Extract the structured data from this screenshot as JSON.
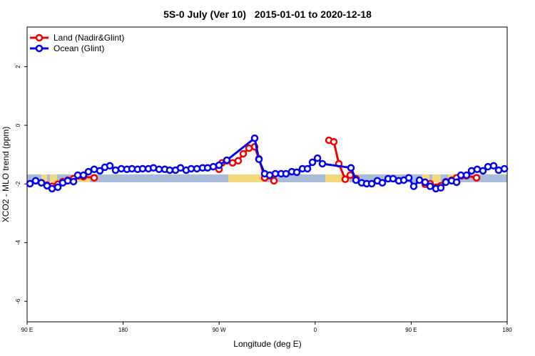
{
  "chart_data": {
    "type": "line",
    "title": "5S-0 July (Ver 10)   2015-01-01 to 2020-12-18",
    "x_label": "Longitude (deg E)",
    "y_label": "XCO2 - MLO trend (ppm)",
    "xlim": [
      90,
      540
    ],
    "xticks": [
      {
        "value": 90,
        "label": "90 E"
      },
      {
        "value": 180,
        "label": "180"
      },
      {
        "value": 270,
        "label": "90 W"
      },
      {
        "value": 360,
        "label": "0"
      },
      {
        "value": 450,
        "label": "90 E"
      },
      {
        "value": 540,
        "label": "180"
      }
    ],
    "ylim": [
      -6.7,
      3.35
    ],
    "yticks": [
      2,
      0,
      -2,
      -4,
      -6
    ],
    "legend": "top-left",
    "series": [
      {
        "name": "Land (Nadir&Glint)",
        "color": "#ee0000",
        "x": [
          103.4,
          108.7,
          113.4,
          118.8,
          123.4,
          128.1,
          133.5,
          138.1,
          142.8,
          152.9,
          220,
          269.9,
          272.6,
          277.2,
          282.6,
          287.9,
          292.6,
          298.0,
          303.3,
          307.3,
          312.7,
          317.4,
          321.4,
          340,
          372.9,
          377.5,
          382.2,
          388.2,
          392.9,
          398.3,
          430,
          463.1,
          467.8,
          473.2,
          477.8,
          482.5,
          487.9,
          492.6,
          497.2,
          501.9,
          511.3
        ],
        "values": [
          -1.96,
          -2.04,
          -2.08,
          -2.01,
          -1.92,
          -1.87,
          -1.82,
          -1.72,
          -1.75,
          -1.79,
          null,
          -1.5,
          -1.28,
          -1.21,
          -1.28,
          -1.21,
          -0.97,
          -0.78,
          -0.73,
          -1.14,
          -1.79,
          -1.72,
          -1.89,
          null,
          -0.51,
          -0.56,
          -1.31,
          -1.84,
          -1.7,
          -1.82,
          null,
          -2.01,
          -1.99,
          -2.11,
          -2.06,
          -1.92,
          -1.87,
          -1.79,
          -1.72,
          -1.72,
          -1.79
        ]
      },
      {
        "name": "Ocean (Glint)",
        "color": "#0000ee",
        "x": [
          92.7,
          98.0,
          103.4,
          108.7,
          113.4,
          118.8,
          123.4,
          128.1,
          133.5,
          137.5,
          142.8,
          147.5,
          152.9,
          158.2,
          162.9,
          167.6,
          172.9,
          178.3,
          183.6,
          188.3,
          193.6,
          198.3,
          203.7,
          208.4,
          213.7,
          219.1,
          223.7,
          229.1,
          233.8,
          239.1,
          243.8,
          249.2,
          254.5,
          259.2,
          264.5,
          269.9,
          277.2,
          303.3,
          307.3,
          312.7,
          317.4,
          322.7,
          328.1,
          332.7,
          338.1,
          342.8,
          348.1,
          352.8,
          357.5,
          362.2,
          366.8,
          393.6,
          398.3,
          403.6,
          408.3,
          413.0,
          418.3,
          423.0,
          428.4,
          433.0,
          438.4,
          443.1,
          447.8,
          452.4,
          457.8,
          463.1,
          467.8,
          473.2,
          477.8,
          482.5,
          487.9,
          492.6,
          496.6,
          501.9,
          506.6,
          511.9,
          517.3,
          522.0,
          527.3,
          532.0,
          537.4
        ],
        "values": [
          -1.99,
          -1.89,
          -1.96,
          -2.06,
          -2.16,
          -2.11,
          -1.96,
          -1.89,
          -1.92,
          -1.7,
          -1.7,
          -1.58,
          -1.5,
          -1.55,
          -1.43,
          -1.38,
          -1.53,
          -1.48,
          -1.5,
          -1.48,
          -1.5,
          -1.48,
          -1.48,
          -1.45,
          -1.5,
          -1.5,
          -1.53,
          -1.53,
          -1.45,
          -1.53,
          -1.48,
          -1.48,
          -1.45,
          -1.45,
          -1.41,
          -1.36,
          -1.19,
          -0.44,
          -1.16,
          -1.65,
          -1.7,
          -1.65,
          -1.65,
          -1.65,
          -1.58,
          -1.6,
          -1.48,
          -1.48,
          -1.26,
          -1.12,
          -1.31,
          -1.45,
          -1.87,
          -1.96,
          -1.99,
          -1.99,
          -1.89,
          -1.96,
          -1.82,
          -1.82,
          -1.89,
          -1.87,
          -1.79,
          -2.08,
          -1.87,
          -1.94,
          -2.08,
          -2.16,
          -2.13,
          -1.94,
          -1.89,
          -1.94,
          -1.7,
          -1.7,
          -1.55,
          -1.5,
          -1.55,
          -1.41,
          -1.38,
          -1.53,
          -1.48
        ]
      }
    ]
  }
}
